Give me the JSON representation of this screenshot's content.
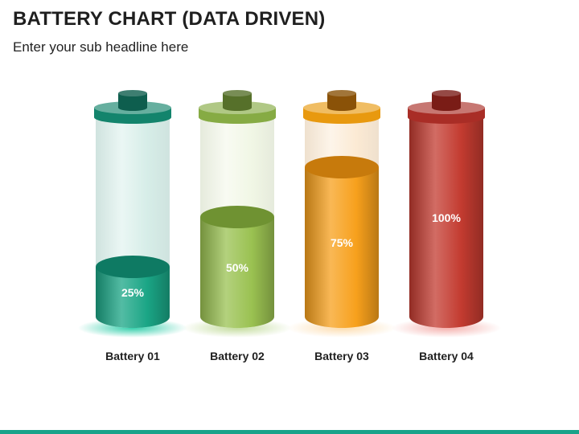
{
  "header": {
    "title": "BATTERY CHART (DATA DRIVEN)",
    "subtitle": "Enter your sub headline here"
  },
  "chart_data": {
    "type": "bar",
    "title": "",
    "categories": [
      "Battery 01",
      "Battery 02",
      "Battery 03",
      "Battery 04"
    ],
    "values": [
      25,
      50,
      75,
      100
    ],
    "data_labels": [
      "25%",
      "50%",
      "75%",
      "100%"
    ],
    "ylim": [
      0,
      100
    ],
    "grid": false,
    "legend": "none",
    "colors": [
      {
        "fill": "#1aa585",
        "top": "#0e7a63",
        "cap": "#13846c",
        "terminal": "#0e5e4e",
        "empty": "#cfeae4",
        "glow": "#1cc9a1"
      },
      {
        "fill": "#9ac151",
        "top": "#6f9232",
        "cap": "#86ab44",
        "terminal": "#56702a",
        "empty": "#eef5e0",
        "glow": "#bcd891"
      },
      {
        "fill": "#f7a01c",
        "top": "#c77a0c",
        "cap": "#e8990f",
        "terminal": "#8a5208",
        "empty": "#fbe6cc",
        "glow": "#fcd9a6"
      },
      {
        "fill": "#c33b30",
        "top": "#8e231c",
        "cap": "#a92d26",
        "terminal": "#7a1c16",
        "empty": "#f3d3d0",
        "glow": "#f3a7a3"
      }
    ]
  }
}
